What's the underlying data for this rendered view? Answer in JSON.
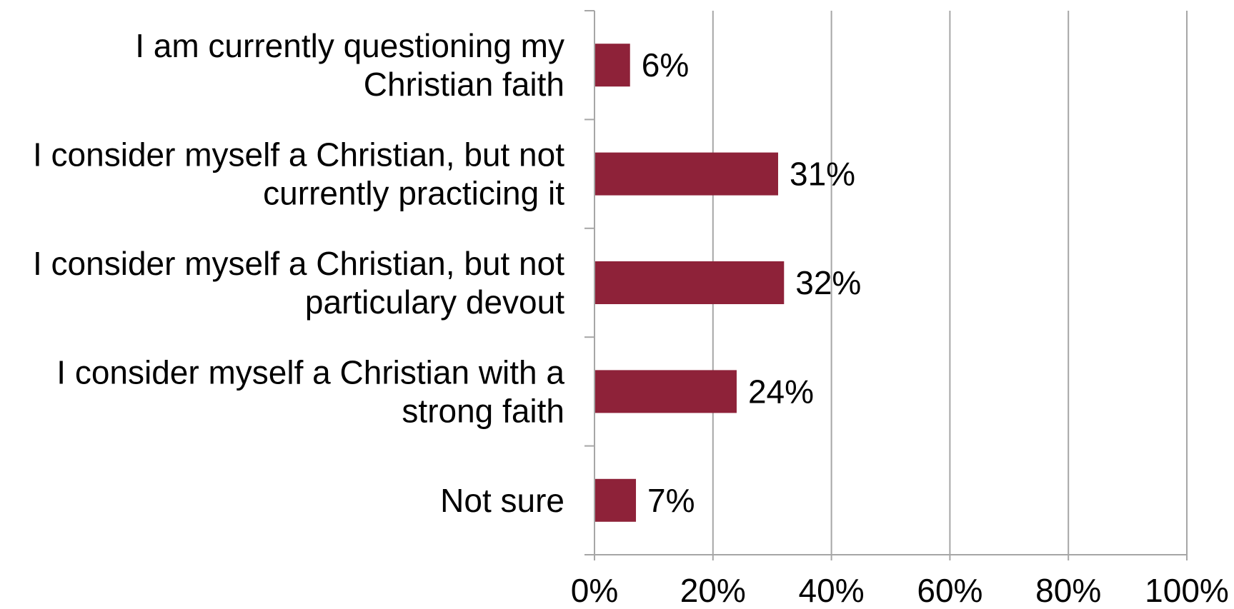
{
  "chart_data": {
    "type": "bar",
    "orientation": "horizontal",
    "categories": [
      [
        "I am currently questioning my",
        "Christian faith"
      ],
      [
        "I consider myself a Christian, but not",
        "currently practicing it"
      ],
      [
        "I consider myself a Christian, but not",
        "particulary devout"
      ],
      [
        "I consider myself a Christian with a",
        "strong faith"
      ],
      [
        "Not sure"
      ]
    ],
    "values": [
      6,
      31,
      32,
      24,
      7
    ],
    "data_labels": [
      "6%",
      "31%",
      "32%",
      "24%",
      "7%"
    ],
    "xlim": [
      0,
      100
    ],
    "xticks": [
      0,
      20,
      40,
      60,
      80,
      100
    ],
    "xtick_labels": [
      "0%",
      "20%",
      "40%",
      "60%",
      "80%",
      "100%"
    ],
    "grid": "vertical",
    "legend": "none",
    "bar_color": "#8e2239",
    "grid_color": "#a6a6a6",
    "title": "",
    "xlabel": "",
    "ylabel": ""
  }
}
